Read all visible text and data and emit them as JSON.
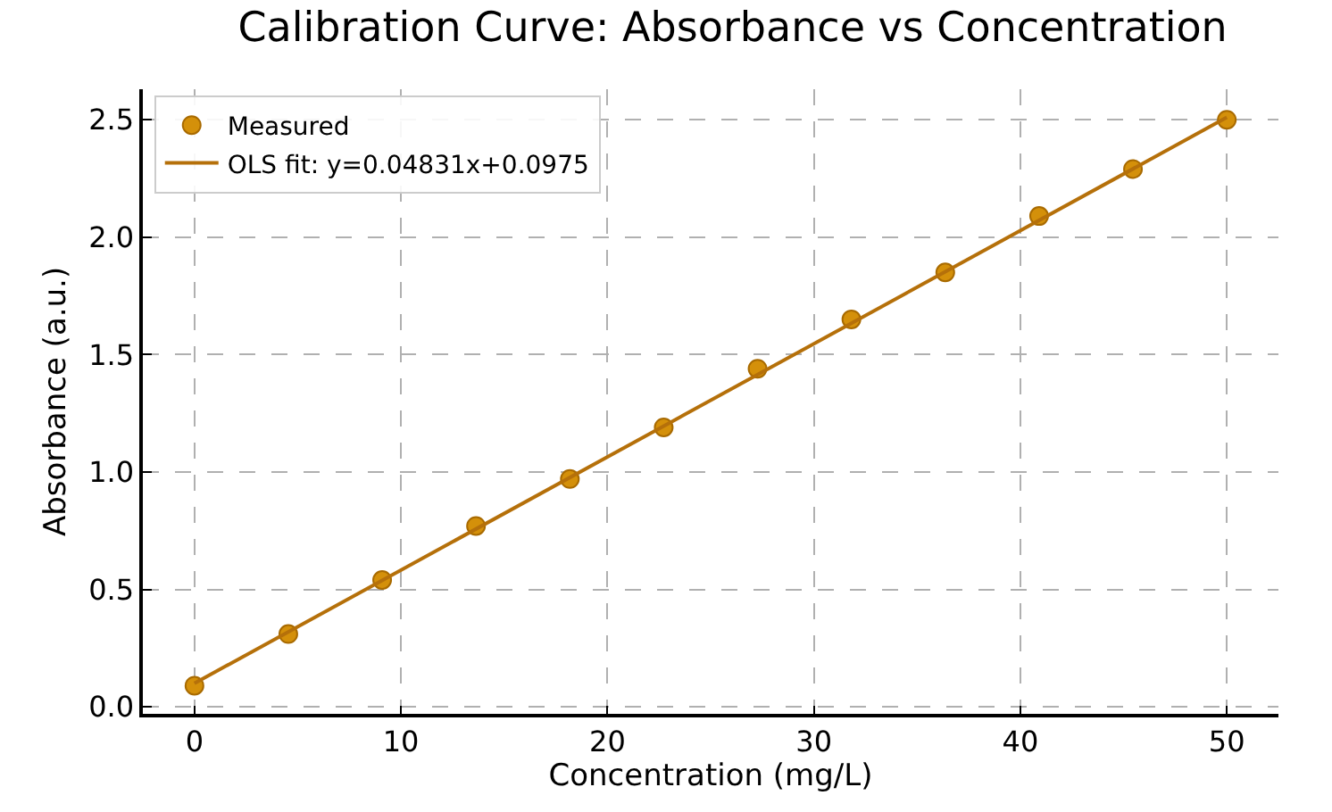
{
  "chart_data": {
    "type": "scatter",
    "title": "Calibration Curve: Absorbance vs Concentration",
    "xlabel": "Concentration (mg/L)",
    "ylabel": "Absorbance (a.u.)",
    "series": [
      {
        "name": "Measured",
        "color": "#d4900a",
        "marker": "circle",
        "x": [
          0,
          4.545,
          9.091,
          13.636,
          18.182,
          22.727,
          27.273,
          31.818,
          36.364,
          40.909,
          45.455,
          50
        ],
        "values": [
          0.09,
          0.31,
          0.54,
          0.77,
          0.97,
          1.19,
          1.44,
          1.65,
          1.85,
          2.09,
          2.29,
          2.5
        ]
      },
      {
        "name": "OLS fit: y=0.04831x+0.0975",
        "type": "line",
        "color": "#b5700a",
        "marker": "none",
        "line_style": "solid",
        "x": [
          0,
          50
        ],
        "values": [
          0.1,
          2.51
        ]
      }
    ],
    "xlim": [
      -2.5,
      52.5
    ],
    "xticks": [
      0,
      10,
      20,
      30,
      40,
      50
    ],
    "ylim": [
      -0.03,
      2.63
    ],
    "yticks": [
      {
        "value": 0,
        "label": "0.0"
      },
      0.5,
      {
        "value": 1,
        "label": "1.0"
      },
      1.5,
      {
        "value": 2,
        "label": "2.0"
      },
      2.5
    ],
    "grid": true,
    "legend": "top left"
  }
}
